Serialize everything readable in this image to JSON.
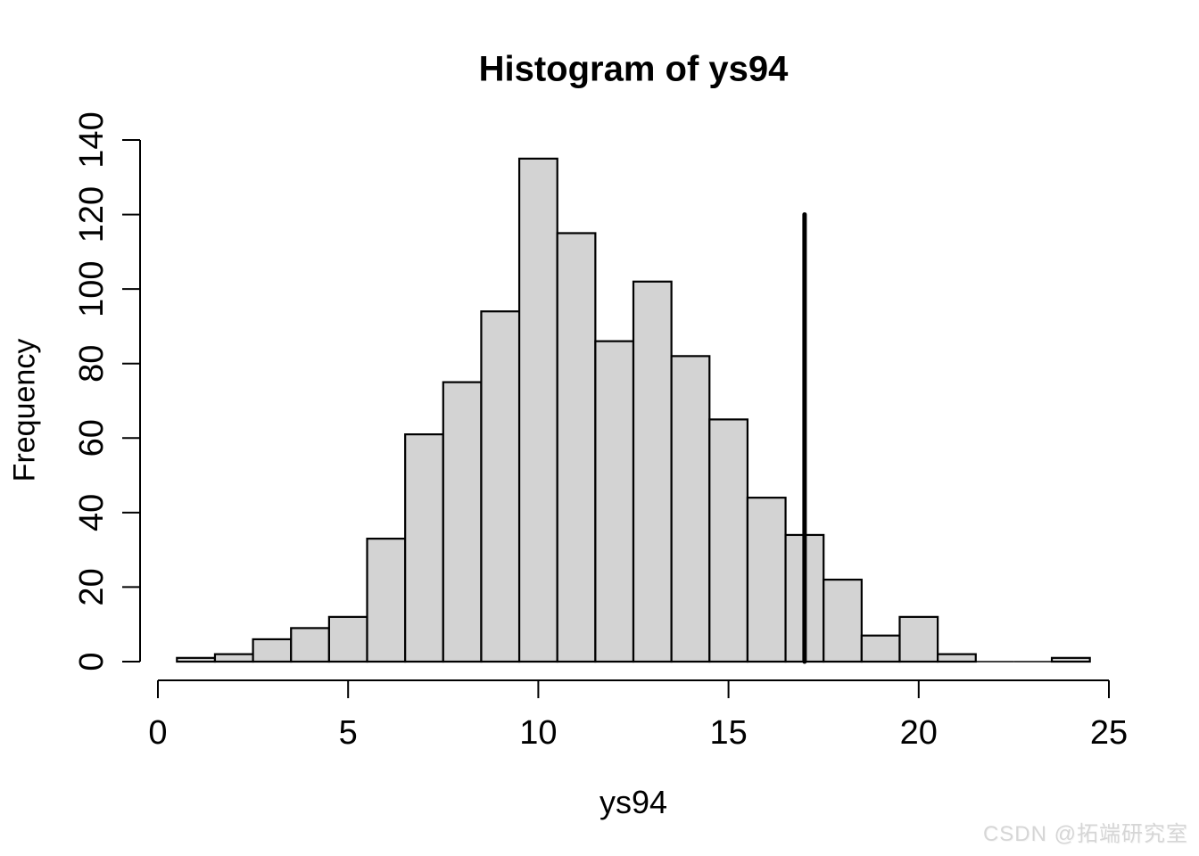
{
  "page": {
    "background": "#ffffff"
  },
  "watermark": {
    "text": "CSDN @拓端研究室",
    "color": "#d6d6d6"
  },
  "chart_data": {
    "type": "bar",
    "subtype": "histogram",
    "title": "Histogram of ys94",
    "xlabel": "ys94",
    "ylabel": "Frequency",
    "bin_start": 0.5,
    "bin_width": 1,
    "counts": [
      1,
      2,
      6,
      9,
      12,
      33,
      61,
      75,
      94,
      135,
      115,
      86,
      102,
      82,
      65,
      44,
      34,
      22,
      7,
      12,
      2,
      0,
      0,
      1
    ],
    "n_total": 1000,
    "xlim": [
      0,
      25
    ],
    "ylim": [
      0,
      140
    ],
    "x_ticks": [
      0,
      5,
      10,
      15,
      20,
      25
    ],
    "y_ticks": [
      0,
      20,
      40,
      60,
      80,
      100,
      120,
      140
    ],
    "grid": false,
    "legend": null,
    "bar_fill": "#d3d3d3",
    "bar_stroke": "#000000",
    "axis_color": "#000000",
    "vline": {
      "x": 17,
      "y0": 0,
      "y1": 120,
      "color": "#000000",
      "width": 5
    }
  }
}
